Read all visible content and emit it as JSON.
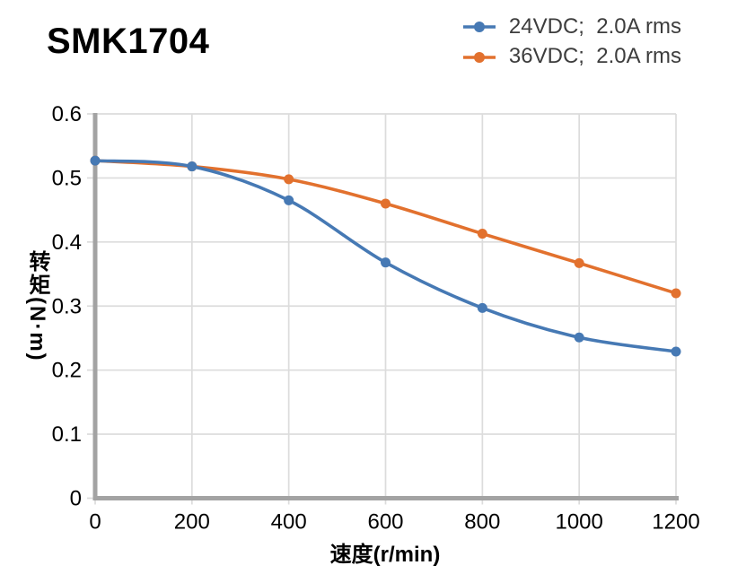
{
  "page": {
    "title": "SMK1704"
  },
  "chart_data": {
    "type": "line",
    "title": "SMK1704",
    "xlabel": "速度(r/min)",
    "ylabel": "转矩(N·m)",
    "x": [
      0,
      200,
      400,
      600,
      800,
      1000,
      1200
    ],
    "series": [
      {
        "name": "24VDC;  2.0A rms",
        "color": "#4679B4",
        "values": [
          0.527,
          0.518,
          0.465,
          0.368,
          0.297,
          0.251,
          0.229
        ]
      },
      {
        "name": "36VDC;  2.0A rms",
        "color": "#E2712E",
        "values": [
          0.527,
          0.518,
          0.498,
          0.46,
          0.413,
          0.367,
          0.32
        ]
      }
    ],
    "xlim": [
      0,
      1200
    ],
    "ylim": [
      0,
      0.6
    ],
    "x_ticks": [
      0,
      200,
      400,
      600,
      800,
      1000,
      1200
    ],
    "x_tick_labels": [
      "0",
      "200",
      "400",
      "600",
      "800",
      "1000",
      "1200"
    ],
    "y_ticks": [
      0,
      0.1,
      0.2,
      0.3,
      0.4,
      0.5,
      0.6
    ],
    "y_tick_labels": [
      "0",
      "0.1",
      "0.2",
      "0.3",
      "0.4",
      "0.5",
      "0.6"
    ],
    "grid": true,
    "legend_position": "top-right",
    "marker": "circle",
    "colors": {
      "gridline": "#DCDCDC",
      "axis": "#A3A3A3",
      "tick_label": "#000000",
      "legend_text": "#3D3D3D",
      "title": "#000000"
    }
  }
}
